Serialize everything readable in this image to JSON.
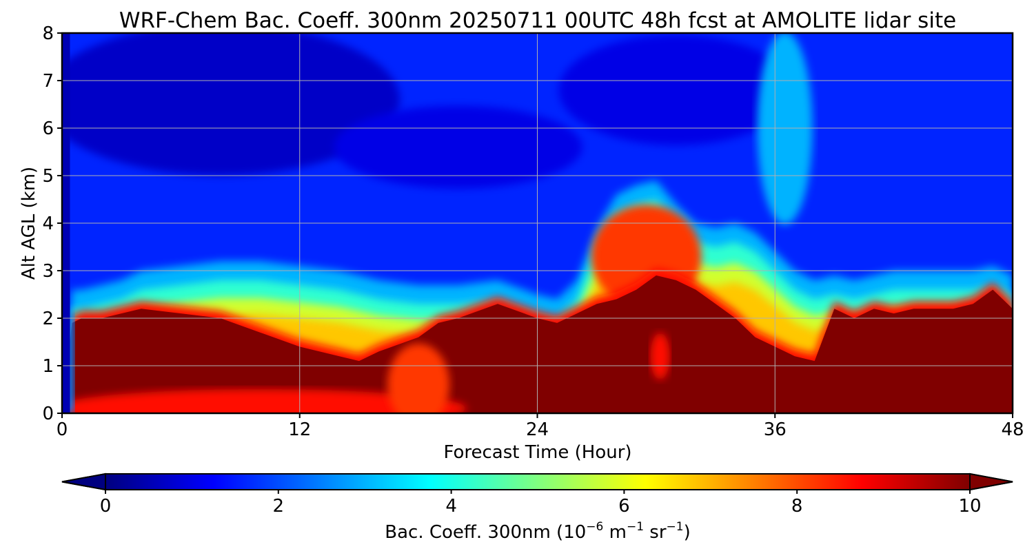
{
  "chart_data": {
    "type": "heatmap",
    "title": "WRF-Chem Bac. Coeff. 300nm  20250711 00UTC 48h fcst at AMOLITE lidar site",
    "xlabel": "Forecast Time (Hour)",
    "ylabel": "Alt AGL (km)",
    "xlim": [
      0,
      48
    ],
    "ylim": [
      0,
      8
    ],
    "x_ticks": [
      "0",
      "12",
      "24",
      "36",
      "48"
    ],
    "y_ticks": [
      "0",
      "1",
      "2",
      "3",
      "4",
      "5",
      "6",
      "7",
      "8"
    ],
    "grid": true,
    "colormap": "jet",
    "colorbar": {
      "orientation": "horizontal",
      "position": "bottom",
      "extend": "both",
      "range": [
        0,
        10
      ],
      "ticks": [
        "0",
        "2",
        "4",
        "6",
        "8",
        "10"
      ],
      "label_main": "Bac. Coeff. 300nm  (10",
      "label_exp1": "−6",
      "label_mid": " m",
      "label_exp2": "−1",
      "label_mid2": " sr",
      "label_exp3": "−1",
      "label_end": ")"
    },
    "x_hours": [
      0,
      0.5,
      1,
      2,
      3,
      4,
      6,
      8,
      10,
      12,
      14,
      15,
      16,
      18,
      19,
      20,
      22,
      24,
      25,
      26,
      27,
      28,
      29,
      30,
      31,
      32,
      33,
      34,
      35,
      36,
      37,
      38,
      39,
      40,
      41,
      42,
      43,
      44,
      45,
      46,
      47,
      48
    ],
    "boundary_layer_top_km": [
      0,
      1.9,
      2.0,
      2.0,
      2.1,
      2.2,
      2.1,
      2.0,
      1.7,
      1.4,
      1.2,
      1.1,
      1.3,
      1.6,
      1.9,
      2.0,
      2.3,
      2.0,
      1.9,
      2.1,
      2.3,
      2.4,
      2.6,
      2.9,
      2.8,
      2.6,
      2.3,
      2.0,
      1.6,
      1.4,
      1.2,
      1.1,
      2.2,
      2.0,
      2.2,
      2.1,
      2.2,
      2.2,
      2.2,
      2.3,
      2.6,
      2.2
    ],
    "aerosol_layer_top_km": [
      0,
      2.2,
      2.2,
      2.3,
      2.4,
      2.6,
      2.7,
      2.8,
      2.8,
      2.7,
      2.6,
      2.5,
      2.4,
      2.3,
      2.3,
      2.3,
      2.4,
      2.1,
      2.0,
      2.4,
      3.5,
      4.2,
      4.4,
      4.5,
      4.0,
      3.6,
      3.5,
      3.6,
      3.4,
      3.0,
      2.6,
      2.4,
      2.5,
      2.4,
      2.5,
      2.6,
      2.6,
      2.6,
      2.6,
      2.6,
      2.7,
      2.5
    ]
  }
}
